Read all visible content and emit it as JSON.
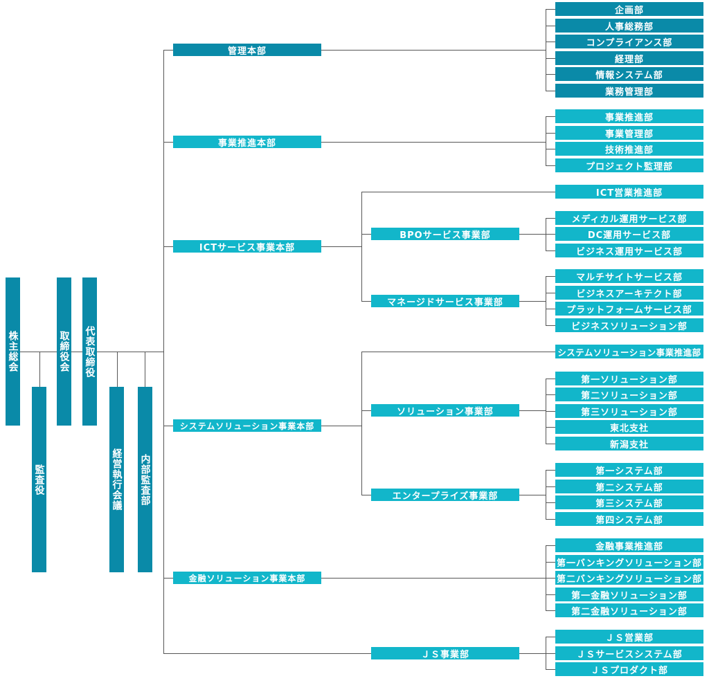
{
  "colors": {
    "dark": "#0a8aa8",
    "light": "#12b6ca",
    "line": "#555555"
  },
  "governance": [
    "株主総会",
    "監査役",
    "取締役会",
    "代表取締役",
    "経営執行会議",
    "内部監査部"
  ],
  "divisions": [
    {
      "name": "管理本部",
      "departments": [
        "企画部",
        "人事総務部",
        "コンプライアンス部",
        "経理部",
        "情報システム部",
        "業務管理部"
      ]
    },
    {
      "name": "事業推進本部",
      "departments": [
        "事業推進部",
        "事業管理部",
        "技術推進部",
        "プロジェクト監理部"
      ]
    },
    {
      "name": "ICTサービス事業本部",
      "direct": "ICT営業推進部",
      "units": [
        {
          "name": "BPOサービス事業部",
          "departments": [
            "メディカル運用サービス部",
            "DC運用サービス部",
            "ビジネス運用サービス部"
          ]
        },
        {
          "name": "マネージドサービス事業部",
          "departments": [
            "マルチサイトサービス部",
            "ビジネスアーキテクト部",
            "プラットフォームサービス部",
            "ビジネスソリューション部"
          ]
        }
      ]
    },
    {
      "name": "システムソリューション事業本部",
      "direct": "システムソリューション事業推進部",
      "units": [
        {
          "name": "ソリューション事業部",
          "departments": [
            "第一ソリューション部",
            "第二ソリューション部",
            "第三ソリューション部",
            "東北支社",
            "新潟支社"
          ]
        },
        {
          "name": "エンタープライズ事業部",
          "departments": [
            "第一システム部",
            "第二システム部",
            "第三システム部",
            "第四システム部"
          ]
        }
      ]
    },
    {
      "name": "金融ソリューション事業本部",
      "departments": [
        "金融事業推進部",
        "第一バンキングソリューション部",
        "第二バンキングソリューション部",
        "第一金融ソリューション部",
        "第二金融ソリューション部"
      ]
    },
    {
      "name": "ＪＳ事業部",
      "departments": [
        "ＪＳ営業部",
        "ＪＳサービスシステム部",
        "ＪＳプロダクト部"
      ]
    }
  ]
}
